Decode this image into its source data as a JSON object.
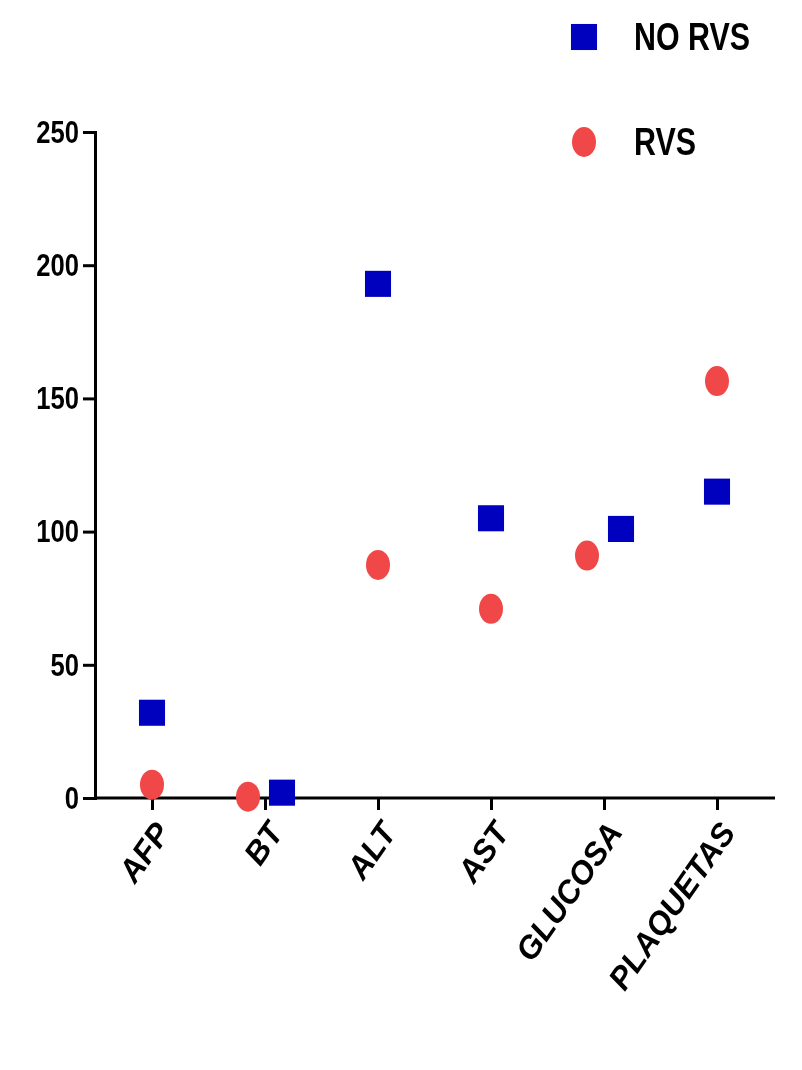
{
  "chart_data": {
    "type": "scatter",
    "categories": [
      "AFP",
      "BT",
      "ALT",
      "AST",
      "GLUCOSA",
      "PLAQUETAS"
    ],
    "series": [
      {
        "name": "NO RVS",
        "color": "#0000bf",
        "marker": "square",
        "values": [
          32,
          2,
          193,
          105,
          101,
          115
        ]
      },
      {
        "name": "RVS",
        "color": "#f04848",
        "marker": "circle",
        "values": [
          5,
          0.5,
          87.5,
          71,
          91,
          156.5
        ]
      }
    ],
    "ylim": [
      0,
      250
    ],
    "yticks": [
      0,
      50,
      100,
      150,
      200,
      250
    ],
    "grid": false,
    "legend": "top right"
  }
}
